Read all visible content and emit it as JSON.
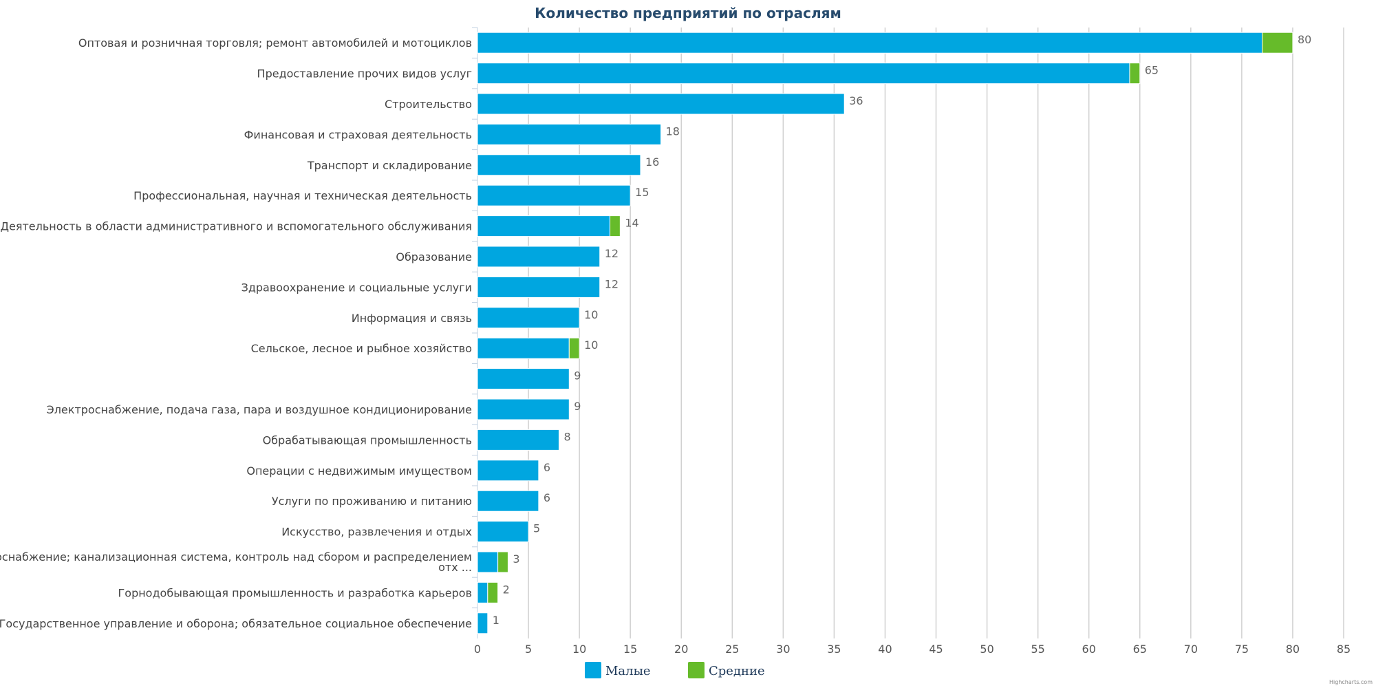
{
  "chart_data": {
    "type": "bar",
    "orientation": "horizontal",
    "stacked": true,
    "title": "Количество предприятий по отраслям",
    "xlim": [
      0,
      85
    ],
    "xticks": [
      0,
      5,
      10,
      15,
      20,
      25,
      30,
      35,
      40,
      45,
      50,
      55,
      60,
      65,
      70,
      75,
      80,
      85
    ],
    "grid": true,
    "legend_position": "bottom",
    "categories": [
      [
        "Оптовая и розничная торговля; ремонт автомобилей и мотоциклов"
      ],
      [
        "Предоставление прочих видов услуг"
      ],
      [
        "Строительство"
      ],
      [
        "Финансовая и страховая деятельность"
      ],
      [
        "Транспорт и складирование"
      ],
      [
        "Профессиональная, научная и техническая деятельность"
      ],
      [
        "Деятельность в области административного и вспомогательного обслуживания"
      ],
      [
        "Образование"
      ],
      [
        "Здравоохранение и социальные услуги"
      ],
      [
        "Информация и связь"
      ],
      [
        "Сельское, лесное и рыбное хозяйство"
      ],
      [
        ""
      ],
      [
        "Электроснабжение, подача газа, пара и воздушное кондиционирование"
      ],
      [
        "Обрабатывающая промышленность"
      ],
      [
        "Операции с недвижимым имуществом"
      ],
      [
        "Услуги по проживанию и питанию"
      ],
      [
        "Искусство, развлечения и отдых"
      ],
      [
        "Водоснабжение; канализационная система, контроль над сбором и распределением",
        "отх ..."
      ],
      [
        "Горнодобывающая промышленность и разработка карьеров"
      ],
      [
        "Государственное управление и оборона; обязательное социальное обеспечение"
      ]
    ],
    "series": [
      {
        "name": "Малые",
        "color": "#00a6e0",
        "values": [
          77,
          64,
          36,
          18,
          16,
          15,
          13,
          12,
          12,
          10,
          9,
          9,
          9,
          8,
          6,
          6,
          5,
          2,
          1,
          1
        ]
      },
      {
        "name": "Средние",
        "color": "#66bb2a",
        "values": [
          3,
          1,
          0,
          0,
          0,
          0,
          1,
          0,
          0,
          0,
          1,
          0,
          0,
          0,
          0,
          0,
          0,
          1,
          1,
          0
        ]
      }
    ],
    "totals": [
      80,
      65,
      36,
      18,
      16,
      15,
      14,
      12,
      12,
      10,
      10,
      9,
      9,
      8,
      6,
      6,
      5,
      3,
      2,
      1
    ]
  },
  "credit": "Highcharts.com"
}
